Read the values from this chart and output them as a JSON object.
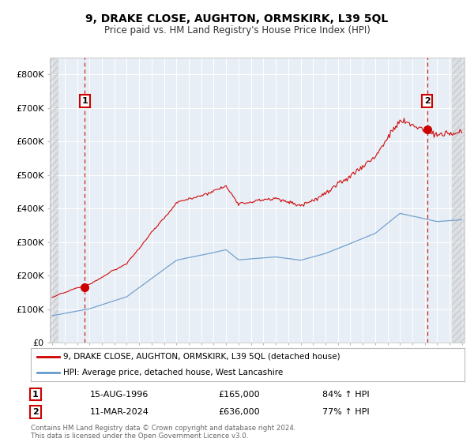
{
  "title": "9, DRAKE CLOSE, AUGHTON, ORMSKIRK, L39 5QL",
  "subtitle": "Price paid vs. HM Land Registry's House Price Index (HPI)",
  "ylim": [
    0,
    850000
  ],
  "yticks": [
    0,
    100000,
    200000,
    300000,
    400000,
    500000,
    600000,
    700000,
    800000
  ],
  "ytick_labels": [
    "£0",
    "£100K",
    "£200K",
    "£300K",
    "£400K",
    "£500K",
    "£600K",
    "£700K",
    "£800K"
  ],
  "x_start_year": 1994,
  "x_end_year": 2027,
  "sale1_date": 1996.62,
  "sale1_price": 165000,
  "sale1_label": "1",
  "sale2_date": 2024.19,
  "sale2_price": 636000,
  "sale2_label": "2",
  "red_line_color": "#cc0000",
  "blue_line_color": "#6699cc",
  "vline_color": "#cc0000",
  "plot_bg": "#e8eef5",
  "grid_color": "#ffffff",
  "fig_bg": "#ffffff",
  "legend_line1": "9, DRAKE CLOSE, AUGHTON, ORMSKIRK, L39 5QL (detached house)",
  "legend_line2": "HPI: Average price, detached house, West Lancashire",
  "info1_num": "1",
  "info1_date": "15-AUG-1996",
  "info1_price": "£165,000",
  "info1_hpi": "84% ↑ HPI",
  "info2_num": "2",
  "info2_date": "11-MAR-2024",
  "info2_price": "£636,000",
  "info2_hpi": "77% ↑ HPI",
  "footer": "Contains HM Land Registry data © Crown copyright and database right 2024.\nThis data is licensed under the Open Government Licence v3.0."
}
